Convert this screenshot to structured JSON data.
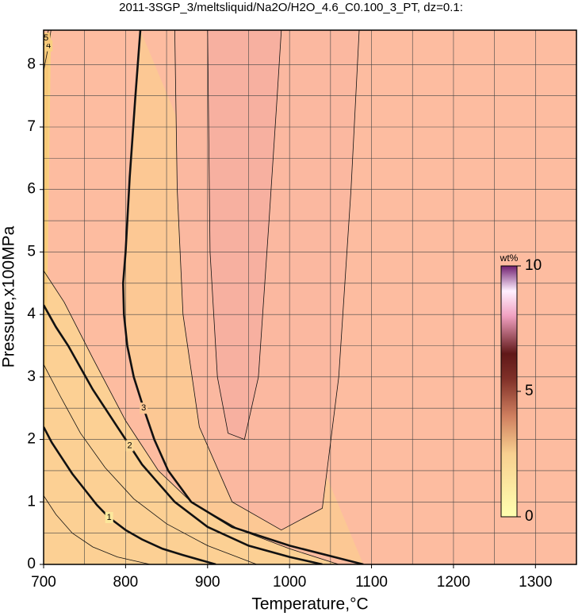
{
  "chart_data": {
    "type": "contour",
    "title": "2011-3SGP_3/meltsliquid/Na2O/H2O_4.6_C0.100_3_PT, dz=0.1:",
    "x_label": "Temperature,°C",
    "y_label": "Pressure,x100MPa",
    "xlim": [
      700,
      1350
    ],
    "ylim": [
      0,
      8.55
    ],
    "xticks": [
      700,
      800,
      900,
      1000,
      1100,
      1200,
      1300
    ],
    "yticks": [
      0,
      1,
      2,
      3,
      4,
      5,
      6,
      7,
      8
    ],
    "xgrid": [
      750,
      800,
      850,
      900,
      950,
      1000,
      1050,
      1100,
      1150,
      1200,
      1250,
      1300
    ],
    "ygrid": [
      0.5,
      1,
      1.5,
      2,
      2.5,
      3,
      3.5,
      4,
      4.5,
      5,
      5.5,
      6,
      6.5,
      7,
      7.5,
      8
    ],
    "grid": true,
    "background": "#fdbca0",
    "contours": [
      {
        "level": 3,
        "labeled": true,
        "bold": true,
        "fill": "#fcc894",
        "x": [
          818,
          812,
          805,
          800,
          797,
          798,
          802,
          810,
          822,
          835,
          852,
          880,
          930,
          1000,
          1060,
          1090
        ],
        "y": [
          8.55,
          7.5,
          6.2,
          5,
          4.5,
          4,
          3.5,
          3,
          2.5,
          2,
          1.5,
          1,
          0.6,
          0.3,
          0.1,
          0
        ]
      },
      {
        "level": 2,
        "labeled": true,
        "bold": true,
        "fill": "#fcd896",
        "x": [
          700,
          715,
          730,
          745,
          760,
          775,
          790,
          805,
          820,
          840,
          860,
          900,
          950,
          1000,
          1040
        ],
        "y": [
          4.15,
          3.8,
          3.5,
          3.15,
          2.8,
          2.5,
          2.2,
          1.9,
          1.6,
          1.3,
          1.0,
          0.6,
          0.3,
          0.12,
          0
        ]
      },
      {
        "level": 1,
        "labeled": true,
        "bold": true,
        "fill": "#fce89c",
        "x": [
          700,
          710,
          720,
          735,
          750,
          765,
          780,
          800,
          820,
          845,
          870,
          910
        ],
        "y": [
          2.2,
          1.95,
          1.75,
          1.45,
          1.2,
          0.95,
          0.75,
          0.55,
          0.4,
          0.25,
          0.15,
          0
        ]
      },
      {
        "level": 0.5,
        "labeled": false,
        "bold": false,
        "fill": "#fdf3a4",
        "x": [
          700,
          715,
          735,
          760,
          790,
          830
        ],
        "y": [
          1.1,
          0.8,
          0.5,
          0.28,
          0.12,
          0
        ]
      },
      {
        "level": 1.5,
        "labeled": false,
        "bold": false,
        "fill": "#fce09a",
        "x": [
          700,
          720,
          745,
          775,
          810,
          850,
          900,
          960
        ],
        "y": [
          3.2,
          2.7,
          2.1,
          1.55,
          1.05,
          0.65,
          0.3,
          0
        ]
      },
      {
        "level": 2.5,
        "labeled": false,
        "bold": false,
        "fill": "#fcd094",
        "x": [
          700,
          725,
          760,
          800,
          840,
          880,
          940,
          1000,
          1060
        ],
        "y": [
          4.7,
          4.2,
          3.3,
          2.3,
          1.5,
          1.0,
          0.55,
          0.25,
          0
        ]
      },
      {
        "level": 3.2,
        "labeled": false,
        "bold": false,
        "fill": "#fbb8a0",
        "x": [
          860,
          863,
          870,
          890,
          930,
          990,
          1040,
          1060,
          1075,
          1085
        ],
        "y": [
          8.55,
          6,
          4,
          2.2,
          1.0,
          0.55,
          0.9,
          3,
          6,
          8.55
        ]
      },
      {
        "level": 3.5,
        "labeled": false,
        "bold": false,
        "fill": "#f7b0a0",
        "x": [
          900,
          903,
          912,
          925,
          945,
          962,
          975,
          985,
          990
        ],
        "y": [
          8.55,
          5,
          3,
          2.1,
          2.0,
          3,
          5.5,
          7.5,
          8.55
        ]
      },
      {
        "level": 4,
        "labeled": true,
        "bold": false,
        "fill": "#f9d080",
        "x": [
          700,
          703,
          706,
          709
        ],
        "y": [
          7.9,
          8.1,
          8.3,
          8.55
        ]
      },
      {
        "level": 5,
        "labeled": true,
        "bold": false,
        "fill": "#f8c878",
        "x": [
          700,
          703,
          706
        ],
        "y": [
          8.3,
          8.42,
          8.55
        ]
      }
    ],
    "colorbar": {
      "label": "wt%",
      "lim": [
        0,
        10
      ],
      "ticks": [
        0,
        5,
        10
      ]
    }
  }
}
